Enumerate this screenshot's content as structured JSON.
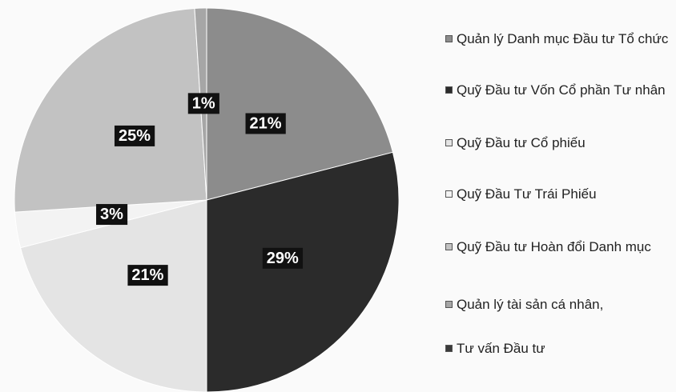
{
  "chart_data": {
    "type": "pie",
    "categories": [
      "Quản lý Danh mục Đầu tư Tổ chức",
      "Quỹ Đầu tư Vốn Cổ phần Tư nhân",
      "Quỹ Đầu tư Cổ phiếu",
      "Quỹ Đầu Tư Trái Phiếu",
      "Quỹ Đầu tư Hoàn đổi Danh mục",
      "Quản lý tài sản cá nhân,",
      "Tư vấn Đầu tư"
    ],
    "values": [
      21,
      29,
      21,
      3,
      25,
      1,
      0
    ],
    "value_labels": [
      "21%",
      "29%",
      "21%",
      "3%",
      "25%",
      "1%",
      null
    ],
    "colors": [
      "#8c8c8c",
      "#2b2b2b",
      "#e4e4e4",
      "#f3f3f3",
      "#c2c2c2",
      "#a6a6a6",
      "#3a3a3a"
    ],
    "legend": "right"
  }
}
